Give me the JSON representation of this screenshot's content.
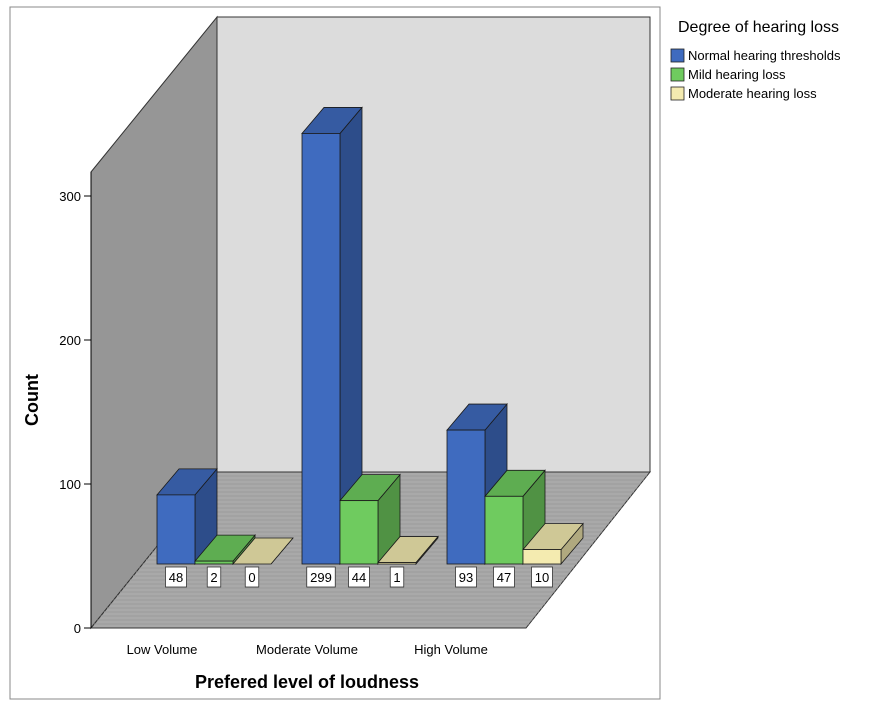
{
  "chart_data": {
    "type": "bar",
    "style": "3d-clustered",
    "xlabel": "Prefered level of loudness",
    "ylabel": "Count",
    "categories": [
      "Low Volume",
      "Moderate Volume",
      "High Volume"
    ],
    "yticks": [
      0,
      100,
      200,
      300
    ],
    "legend_title": "Degree of hearing loss",
    "legend_position": "top-right",
    "series": [
      {
        "name": "Normal hearing thresholds",
        "values": [
          48,
          299,
          93
        ],
        "color": "#3f6bbf"
      },
      {
        "name": "Mild hearing loss",
        "values": [
          2,
          44,
          47
        ],
        "color": "#6fcb5f"
      },
      {
        "name": "Moderate hearing loss",
        "values": [
          0,
          1,
          10
        ],
        "color": "#f4ebb0"
      }
    ],
    "data_labels": [
      [
        "48",
        "2",
        "0"
      ],
      [
        "299",
        "44",
        "1"
      ],
      [
        "93",
        "47",
        "10"
      ]
    ]
  }
}
